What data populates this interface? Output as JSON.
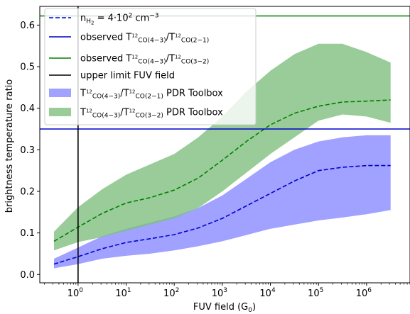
{
  "chart_data": {
    "type": "area",
    "xlabel": "FUV field (G",
    "xlabel_sub": "0",
    "xlabel_end": ")",
    "ylabel": "brightness temperature ratio",
    "x_scale": "log",
    "xlim": [
      0.16,
      8000000
    ],
    "ylim": [
      -0.02,
      0.645
    ],
    "x_ticks": [
      {
        "value": 1,
        "base": "10",
        "exp": "0"
      },
      {
        "value": 10,
        "base": "10",
        "exp": "1"
      },
      {
        "value": 100,
        "base": "10",
        "exp": "2"
      },
      {
        "value": 1000,
        "base": "10",
        "exp": "3"
      },
      {
        "value": 10000,
        "base": "10",
        "exp": "4"
      },
      {
        "value": 100000,
        "base": "10",
        "exp": "5"
      },
      {
        "value": 1000000,
        "base": "10",
        "exp": "6"
      }
    ],
    "y_ticks": [
      {
        "value": 0.0,
        "label": "0.0"
      },
      {
        "value": 0.1,
        "label": "0.1"
      },
      {
        "value": 0.2,
        "label": "0.2"
      },
      {
        "value": 0.3,
        "label": "0.3"
      },
      {
        "value": 0.4,
        "label": "0.4"
      },
      {
        "value": 0.5,
        "label": "0.5"
      },
      {
        "value": 0.6,
        "label": "0.6"
      }
    ],
    "x": [
      0.316,
      1,
      3.16,
      10,
      31.6,
      100,
      316,
      1000,
      3160,
      10000,
      31600,
      100000,
      316000,
      1000000,
      3160000
    ],
    "bands": [
      {
        "name_parts": [
          "T",
          "12",
          "CO(4−3)",
          "/T",
          "12",
          "CO(2−1)",
          " PDR Toolbox"
        ],
        "color": "#8a8aff",
        "lower": [
          0.015,
          0.025,
          0.038,
          0.045,
          0.05,
          0.058,
          0.068,
          0.08,
          0.095,
          0.11,
          0.12,
          0.13,
          0.137,
          0.145,
          0.155
        ],
        "upper": [
          0.038,
          0.065,
          0.092,
          0.11,
          0.125,
          0.14,
          0.16,
          0.19,
          0.23,
          0.27,
          0.3,
          0.32,
          0.33,
          0.335,
          0.335
        ]
      },
      {
        "name_parts": [
          "T",
          "12",
          "CO(4−3)",
          "/T",
          "12",
          "CO(3−2)",
          " PDR Toolbox"
        ],
        "color": "#7fbf7f",
        "lower": [
          0.058,
          0.078,
          0.09,
          0.105,
          0.12,
          0.135,
          0.16,
          0.2,
          0.245,
          0.29,
          0.33,
          0.37,
          0.385,
          0.38,
          0.365
        ],
        "upper": [
          0.103,
          0.162,
          0.205,
          0.24,
          0.265,
          0.29,
          0.33,
          0.38,
          0.44,
          0.49,
          0.53,
          0.555,
          0.555,
          0.535,
          0.51
        ]
      }
    ],
    "lines": [
      {
        "name": "n",
        "name_sub": "H",
        "name_subsub": "2",
        "name_rest": " = 4·10",
        "name_sup": "2",
        "name_rest2": " cm",
        "name_sup2": "−3",
        "color": "#0000cc",
        "style": "dashed",
        "y": [
          0.025,
          0.043,
          0.062,
          0.077,
          0.086,
          0.096,
          0.112,
          0.135,
          0.165,
          0.195,
          0.225,
          0.25,
          0.258,
          0.262,
          0.262
        ]
      },
      {
        "name": "",
        "color": "#008000",
        "style": "dashed",
        "y": [
          0.08,
          0.114,
          0.147,
          0.172,
          0.185,
          0.203,
          0.232,
          0.275,
          0.32,
          0.36,
          0.388,
          0.405,
          0.415,
          0.417,
          0.42
        ]
      }
    ],
    "hlines": [
      {
        "name_parts": [
          "observed T",
          "12",
          "CO(4−3)",
          "/T",
          "12",
          "CO(2−1)"
        ],
        "y": 0.35,
        "color": "#0000cc"
      },
      {
        "name_parts": [
          "observed T",
          "12",
          "CO(4−3)",
          "/T",
          "12",
          "CO(3−2)"
        ],
        "y": 0.622,
        "color": "#008000"
      }
    ],
    "vlines": [
      {
        "name": "upper limit FUV field",
        "x": 1,
        "color": "#000000"
      }
    ],
    "legend": "top-left"
  }
}
